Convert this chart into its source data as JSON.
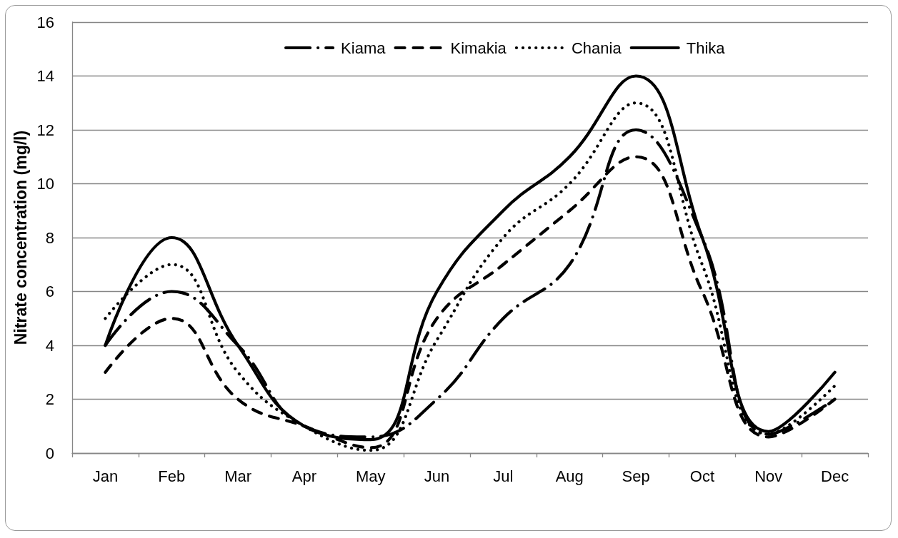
{
  "chart_data": {
    "type": "line",
    "ylabel": "Nitrate concentration (mg/l)",
    "categories": [
      "Jan",
      "Feb",
      "Mar",
      "Apr",
      "May",
      "Jun",
      "Jul",
      "Aug",
      "Sep",
      "Oct",
      "Nov",
      "Dec"
    ],
    "series": [
      {
        "name": "Kiama",
        "color": "#000000",
        "line_style": "dashdot",
        "values": [
          4,
          6,
          4,
          1,
          0.6,
          2,
          5,
          7,
          12,
          8,
          0.7,
          2
        ]
      },
      {
        "name": "Kimakia",
        "color": "#000000",
        "line_style": "dashed",
        "values": [
          3,
          5,
          2,
          1,
          0.2,
          5,
          7,
          9,
          11,
          6,
          0.6,
          2
        ]
      },
      {
        "name": "Chania",
        "color": "#000000",
        "line_style": "dotted",
        "values": [
          5,
          7,
          3,
          1,
          0.1,
          4.2,
          8,
          10,
          13,
          7,
          0.7,
          2.5
        ]
      },
      {
        "name": "Thika",
        "color": "#000000",
        "line_style": "solid",
        "values": [
          4,
          8,
          4,
          1,
          0.5,
          6,
          9,
          11,
          14,
          8,
          0.8,
          3
        ]
      }
    ],
    "ylim": [
      0,
      16
    ],
    "yticks": [
      0,
      2,
      4,
      6,
      8,
      10,
      12,
      14,
      16
    ],
    "grid": "y",
    "legend": "top",
    "marker": "none"
  }
}
